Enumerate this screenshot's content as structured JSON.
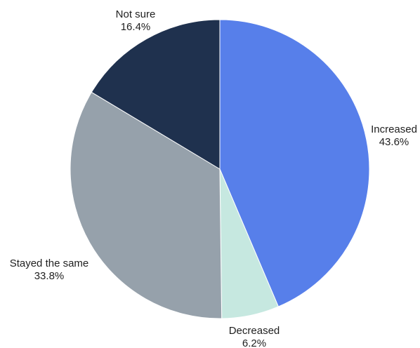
{
  "chart_data": {
    "type": "pie",
    "title": "",
    "legend": "none",
    "slices": [
      {
        "label": "Increased",
        "value": 43.6,
        "value_label": "43.6%",
        "color": "#577fea"
      },
      {
        "label": "Decreased",
        "value": 6.2,
        "value_label": "6.2%",
        "color": "#c6e8e0"
      },
      {
        "label": "Stayed the same",
        "value": 33.8,
        "value_label": "33.8%",
        "color": "#96a1ab"
      },
      {
        "label": "Not sure",
        "value": 16.4,
        "value_label": "16.4%",
        "color": "#1f314e"
      }
    ]
  }
}
